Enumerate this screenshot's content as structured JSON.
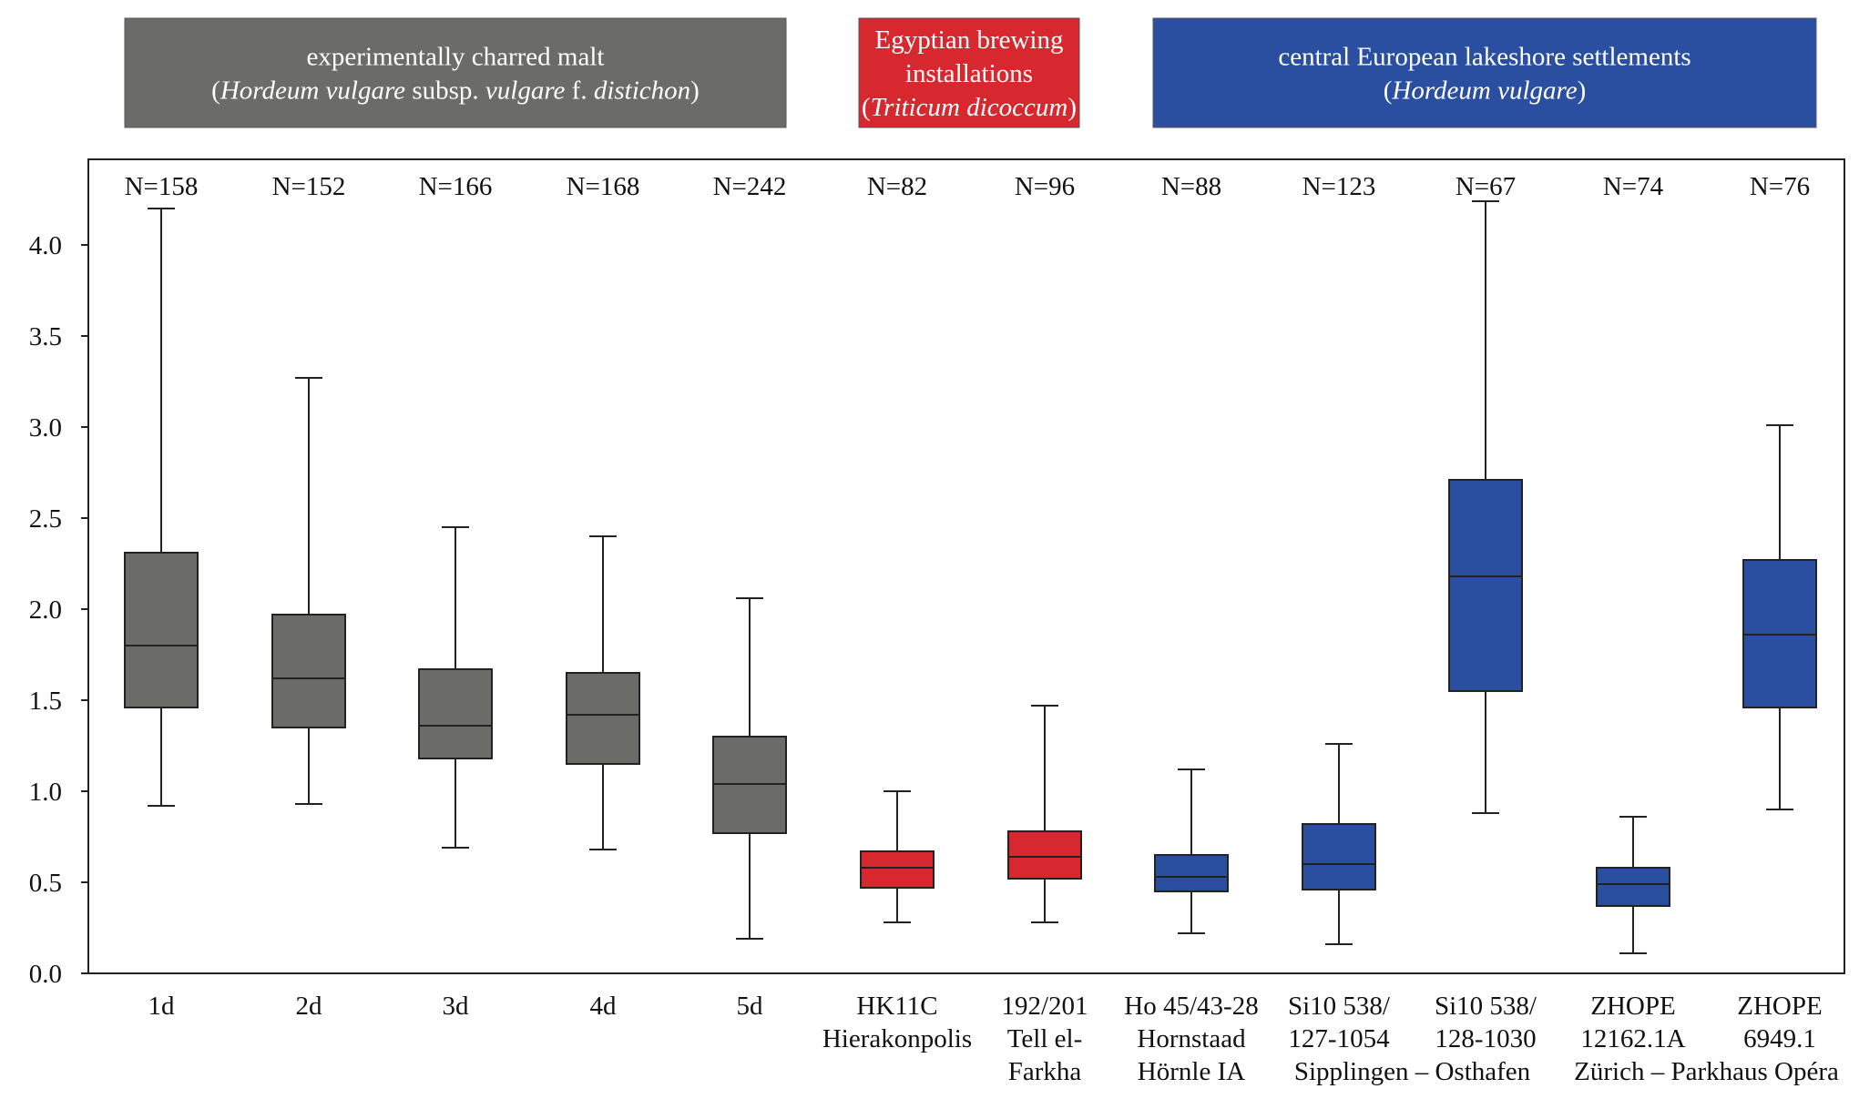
{
  "header_groups": [
    {
      "label": "experimentally charred malt",
      "color": "#6b6b67",
      "lines": [
        [
          {
            "t": "experimentally charred malt",
            "i": false
          }
        ],
        [
          {
            "t": "(",
            "i": false
          },
          {
            "t": "Hordeum vulgare",
            "i": true
          },
          {
            "t": " subsp. ",
            "i": false
          },
          {
            "t": "vulgare",
            "i": true
          },
          {
            "t": " f. ",
            "i": false
          },
          {
            "t": "distichon",
            "i": true
          },
          {
            "t": ")",
            "i": false
          }
        ]
      ]
    },
    {
      "label": "Egyptian brewing installations",
      "color": "#d7282f",
      "lines": [
        [
          {
            "t": "Egyptian brewing",
            "i": false
          }
        ],
        [
          {
            "t": "installations",
            "i": false
          }
        ],
        [
          {
            "t": "(",
            "i": false
          },
          {
            "t": "Triticum dicoccum",
            "i": true
          },
          {
            "t": ")",
            "i": false
          }
        ]
      ]
    },
    {
      "label": "central European lakeshore settlements",
      "color": "#2a4fa0",
      "lines": [
        [
          {
            "t": "central European lakeshore settlements",
            "i": false
          }
        ],
        [
          {
            "t": "(",
            "i": false
          },
          {
            "t": "Hordeum vulgare",
            "i": true
          },
          {
            "t": ")",
            "i": false
          }
        ]
      ]
    }
  ],
  "colors": {
    "malt": "#6b6b67",
    "egypt": "#d7282f",
    "lake": "#2a4fa0",
    "axis": "#222222"
  },
  "chart_data": {
    "type": "box",
    "title": "",
    "xlabel": "",
    "ylabel": "",
    "ylim": [
      0,
      4.2
    ],
    "yticks": [
      "0.0",
      "0.5",
      "1.0",
      "1.5",
      "2.0",
      "2.5",
      "3.0",
      "3.5",
      "4.0"
    ],
    "grid": false,
    "categories": [
      {
        "lines": [
          "1d"
        ],
        "n": "N=158",
        "group": "malt",
        "min": 0.92,
        "q1": 1.46,
        "median": 1.8,
        "q3": 2.31,
        "max": 4.2
      },
      {
        "lines": [
          "2d"
        ],
        "n": "N=152",
        "group": "malt",
        "min": 0.93,
        "q1": 1.35,
        "median": 1.62,
        "q3": 1.97,
        "max": 3.27
      },
      {
        "lines": [
          "3d"
        ],
        "n": "N=166",
        "group": "malt",
        "min": 0.69,
        "q1": 1.18,
        "median": 1.36,
        "q3": 1.67,
        "max": 2.45
      },
      {
        "lines": [
          "4d"
        ],
        "n": "N=168",
        "group": "malt",
        "min": 0.68,
        "q1": 1.15,
        "median": 1.42,
        "q3": 1.65,
        "max": 2.4
      },
      {
        "lines": [
          "5d"
        ],
        "n": "N=242",
        "group": "malt",
        "min": 0.19,
        "q1": 0.77,
        "median": 1.04,
        "q3": 1.3,
        "max": 2.06
      },
      {
        "lines": [
          "HK11C",
          "Hierakonpolis"
        ],
        "n": "N=82",
        "group": "egypt",
        "min": 0.28,
        "q1": 0.47,
        "median": 0.58,
        "q3": 0.67,
        "max": 1.0
      },
      {
        "lines": [
          "192/201",
          "Tell el-",
          "Farkha"
        ],
        "n": "N=96",
        "group": "egypt",
        "min": 0.28,
        "q1": 0.52,
        "median": 0.64,
        "q3": 0.78,
        "max": 1.47
      },
      {
        "lines": [
          "Ho 45/43-28",
          "Hornstaad",
          "Hörnle IA"
        ],
        "n": "N=88",
        "group": "lake",
        "min": 0.22,
        "q1": 0.45,
        "median": 0.53,
        "q3": 0.65,
        "max": 1.12
      },
      {
        "lines": [
          "Si10 538/",
          "127-1054"
        ],
        "n": "N=123",
        "group": "lake",
        "min": 0.16,
        "q1": 0.46,
        "median": 0.6,
        "q3": 0.82,
        "max": 1.26
      },
      {
        "lines": [
          "Si10 538/",
          "128-1030"
        ],
        "n": "N=67",
        "group": "lake",
        "min": 0.88,
        "q1": 1.55,
        "median": 2.18,
        "q3": 2.71,
        "max": 4.24
      },
      {
        "lines": [
          "ZHOPE",
          "12162.1A"
        ],
        "n": "N=74",
        "group": "lake",
        "min": 0.11,
        "q1": 0.37,
        "median": 0.49,
        "q3": 0.58,
        "max": 0.86
      },
      {
        "lines": [
          "ZHOPE",
          "6949.1"
        ],
        "n": "N=76",
        "group": "lake",
        "min": 0.9,
        "q1": 1.46,
        "median": 1.86,
        "q3": 2.27,
        "max": 3.01
      }
    ],
    "site_labels": [
      {
        "text": "Sipplingen – Osthafen",
        "spans": [
          8,
          9
        ]
      },
      {
        "text": "Zürich – Parkhaus Opéra",
        "spans": [
          10,
          11
        ]
      }
    ]
  }
}
